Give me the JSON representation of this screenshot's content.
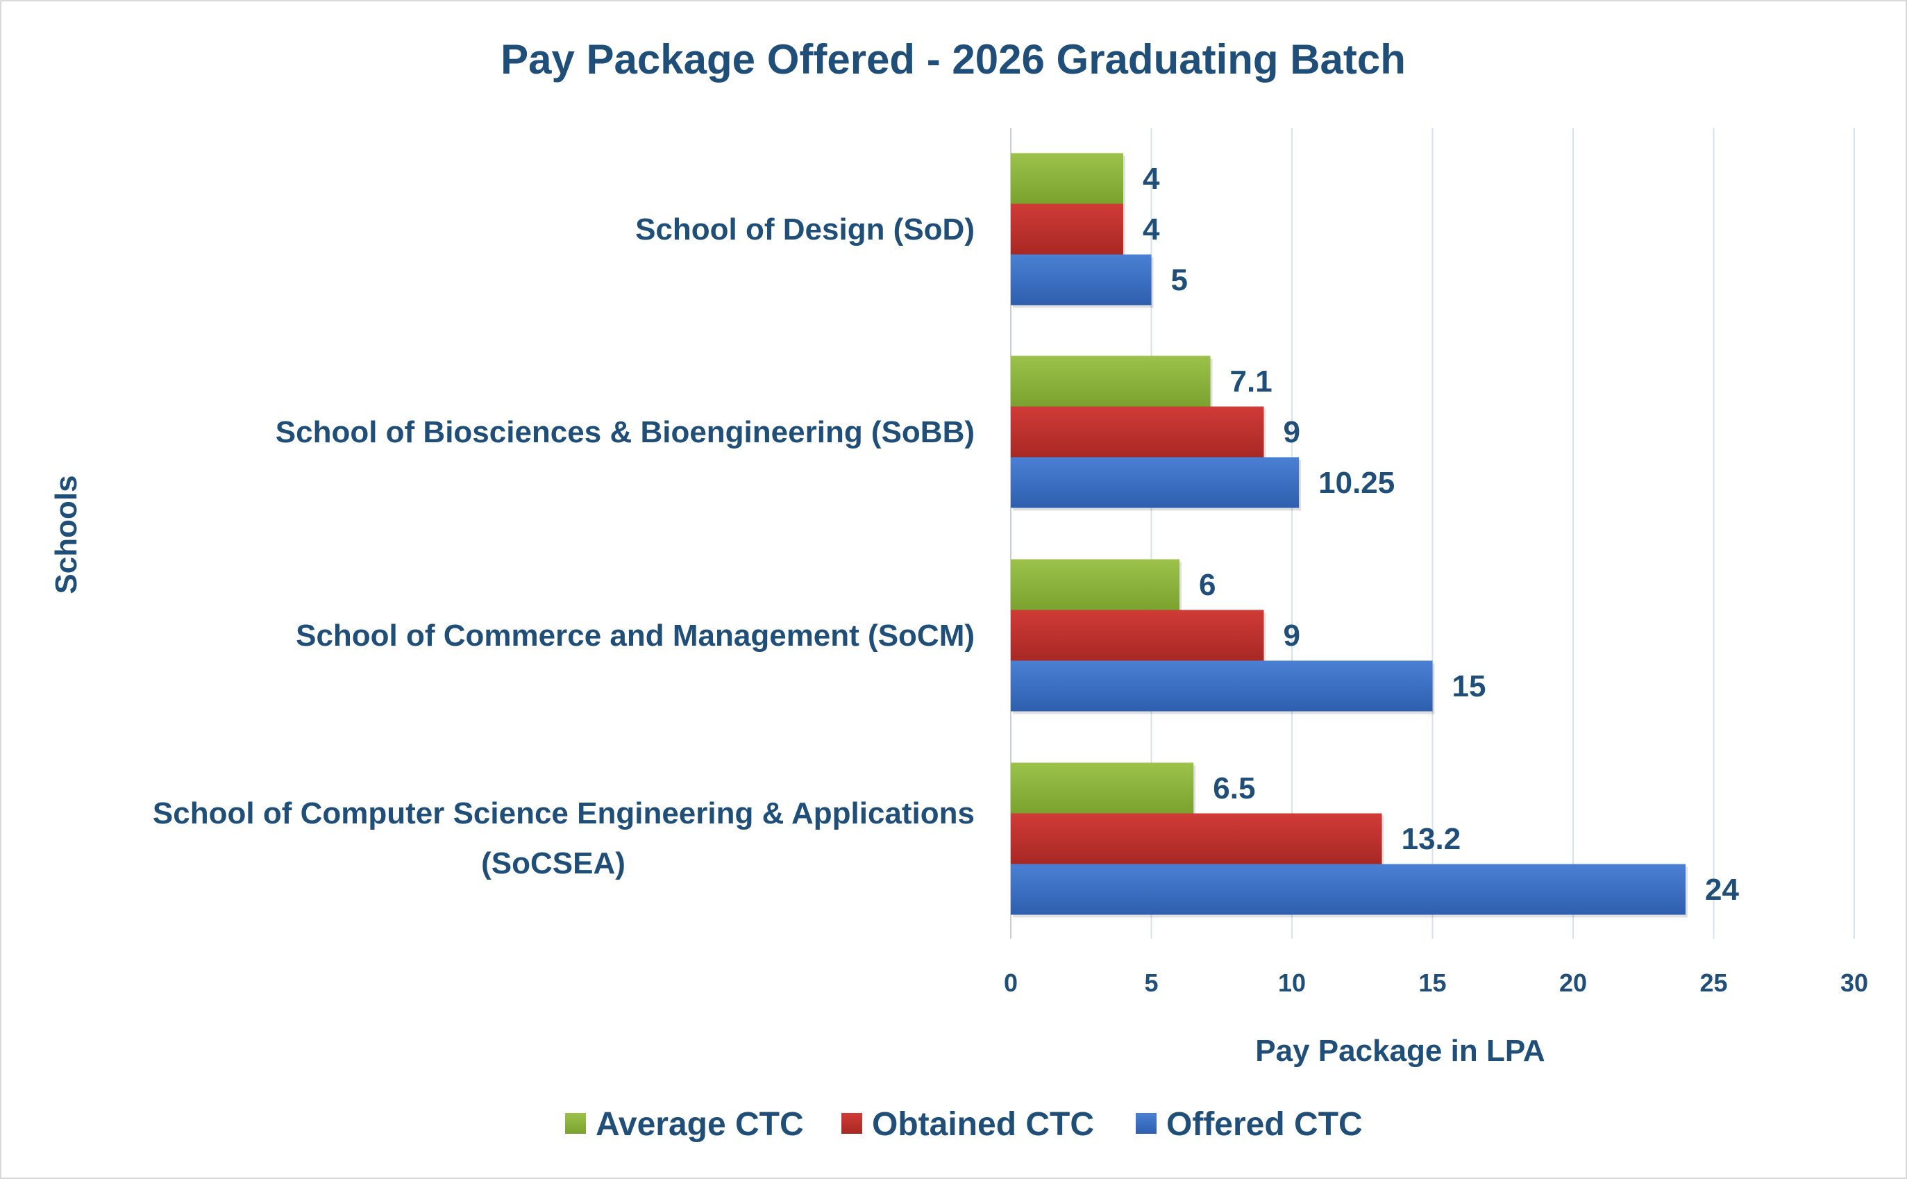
{
  "chart_data": {
    "type": "bar",
    "orientation": "horizontal",
    "title": "Pay Package Offered - 2026 Graduating Batch",
    "xlabel": "Pay Package in LPA",
    "ylabel": "Schools",
    "xlim": [
      0,
      30
    ],
    "xticks": [
      0,
      5,
      10,
      15,
      20,
      25,
      30
    ],
    "grid": "vertical",
    "legend_position": "bottom",
    "categories": [
      [
        "School of Design (SoD)"
      ],
      [
        "School of Biosciences & Bioengineering (SoBB)"
      ],
      [
        "School of Commerce and Management (SoCM)"
      ],
      [
        "School of Computer Science Engineering & Applications",
        "(SoCSEA)"
      ]
    ],
    "series": [
      {
        "name": "Average CTC",
        "color": "#8fb43a",
        "values": [
          4,
          7.1,
          6,
          6.5
        ],
        "labels": [
          "4",
          "7.1",
          "6",
          "6.5"
        ]
      },
      {
        "name": "Obtained CTC",
        "color": "#c0312e",
        "values": [
          4,
          9,
          9,
          13.2
        ],
        "labels": [
          "4",
          "9",
          "9",
          "13.2"
        ]
      },
      {
        "name": "Offered CTC",
        "color": "#3a6fc4",
        "values": [
          5,
          10.25,
          15,
          24
        ],
        "labels": [
          "5",
          "10.25",
          "15",
          "24"
        ]
      }
    ]
  }
}
